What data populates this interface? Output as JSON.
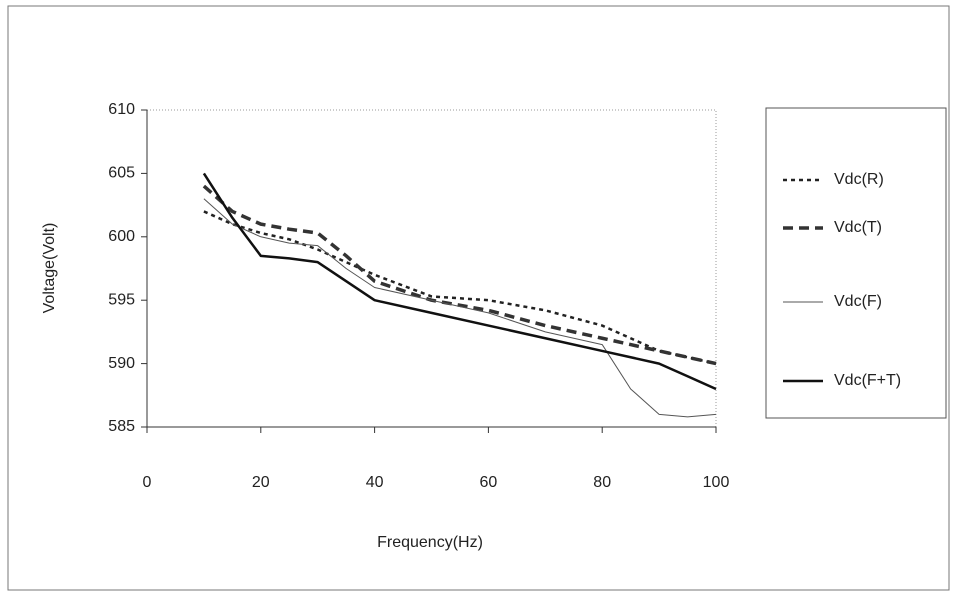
{
  "chart_data": {
    "type": "line",
    "x_label": "Frequency(Hz)",
    "y_label": "Voltage(Volt)",
    "x": [
      10,
      15,
      20,
      25,
      30,
      35,
      40,
      50,
      60,
      70,
      80,
      85,
      90,
      95,
      100
    ],
    "series": [
      {
        "name": "Vdc(R)",
        "color": "#222222",
        "dash": "4 4",
        "width": 2.5,
        "values": [
          602,
          601,
          600.3,
          599.8,
          599,
          598,
          597,
          595.3,
          595,
          594.2,
          593,
          592,
          591,
          590.5,
          590
        ]
      },
      {
        "name": "Vdc(T)",
        "color": "#333333",
        "dash": "10 6",
        "width": 3.5,
        "values": [
          604,
          602,
          601,
          600.6,
          600.3,
          598.5,
          596.5,
          595,
          594.2,
          593,
          592,
          591.5,
          591,
          590.5,
          590
        ]
      },
      {
        "name": "Vdc(F)",
        "color": "#555555",
        "dash": "none",
        "width": 1,
        "values": [
          603,
          601,
          600,
          599.5,
          599.3,
          597.5,
          596,
          595,
          594,
          592.5,
          591.5,
          588,
          586,
          585.8,
          586
        ]
      },
      {
        "name": "Vdc(F+T)",
        "color": "#111111",
        "dash": "none",
        "width": 2.5,
        "values": [
          605,
          601.5,
          598.5,
          598.3,
          598,
          596.5,
          595,
          594,
          593,
          592,
          591,
          590.5,
          590,
          589,
          588
        ]
      }
    ],
    "xlim": [
      0,
      100
    ],
    "xticks": [
      0,
      20,
      40,
      60,
      80,
      100
    ],
    "ylim": [
      585,
      610
    ],
    "yticks": [
      585,
      590,
      595,
      600,
      605,
      610
    ],
    "legend": "right"
  }
}
